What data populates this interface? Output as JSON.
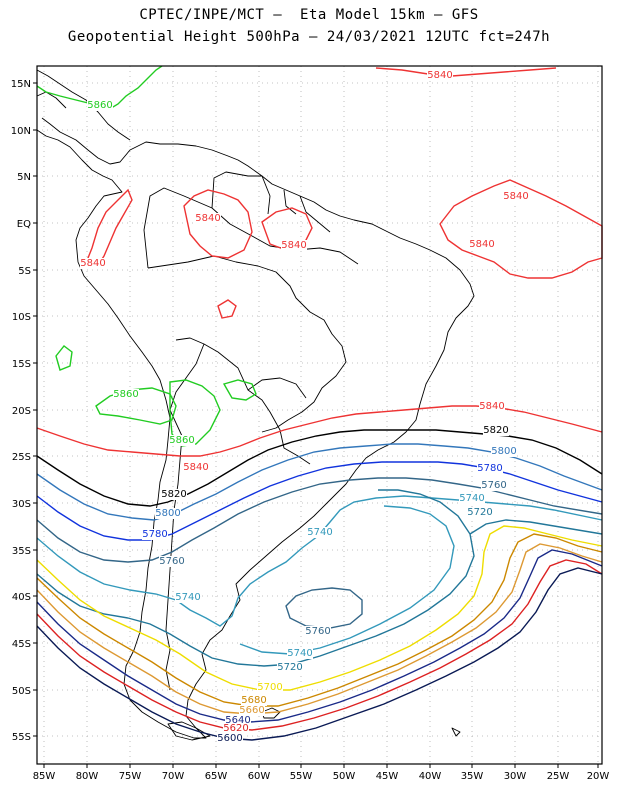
{
  "title": {
    "line1": "CPTEC/INPE/MCT –  Eta Model 15km – GFS",
    "line2": "Geopotential Height 500hPa – 24/03/2021 12UTC fct=247h"
  },
  "axes": {
    "y_ticks": [
      "15N",
      "10N",
      "5N",
      "EQ",
      "5S",
      "10S",
      "15S",
      "20S",
      "25S",
      "30S",
      "35S",
      "40S",
      "45S",
      "50S",
      "55S"
    ],
    "x_ticks": [
      "85W",
      "80W",
      "75W",
      "70W",
      "65W",
      "60W",
      "55W",
      "50W",
      "45W",
      "40W",
      "35W",
      "30W",
      "25W",
      "20W"
    ],
    "grid": true
  },
  "colors": {
    "5860": "#22cc22",
    "5840": "#ee3333",
    "5820": "#000000",
    "5800": "#3377bb",
    "5780": "#1133dd",
    "5760": "#336688",
    "5740": "#3399bb",
    "5720": "#227799",
    "5700": "#eedd00",
    "5680": "#cc8800",
    "5660": "#dd9933",
    "5640": "#1a2a88",
    "5620": "#dd2222",
    "5600": "#0a1a55"
  },
  "contour_labels": [
    {
      "text": "5860",
      "level": "5860",
      "id": "l1"
    },
    {
      "text": "5840",
      "level": "5840",
      "id": "l2"
    },
    {
      "text": "5840",
      "level": "5840",
      "id": "l3"
    },
    {
      "text": "5840",
      "level": "5840",
      "id": "l4"
    },
    {
      "text": "5840",
      "level": "5840",
      "id": "l5"
    },
    {
      "text": "5840",
      "level": "5840",
      "id": "l6"
    },
    {
      "text": "5840",
      "level": "5840",
      "id": "l7"
    },
    {
      "text": "5860",
      "level": "5860",
      "id": "l8"
    },
    {
      "text": "5860",
      "level": "5860",
      "id": "l9"
    },
    {
      "text": "5840",
      "level": "5840",
      "id": "l10"
    },
    {
      "text": "5840",
      "level": "5840",
      "id": "l11"
    },
    {
      "text": "5820",
      "level": "5820",
      "id": "l12"
    },
    {
      "text": "5820",
      "level": "5820",
      "id": "l13"
    },
    {
      "text": "5800",
      "level": "5800",
      "id": "l14"
    },
    {
      "text": "5800",
      "level": "5800",
      "id": "l15"
    },
    {
      "text": "5780",
      "level": "5780",
      "id": "l16"
    },
    {
      "text": "5780",
      "level": "5780",
      "id": "l17"
    },
    {
      "text": "5760",
      "level": "5760",
      "id": "l18"
    },
    {
      "text": "5760",
      "level": "5760",
      "id": "l19"
    },
    {
      "text": "5740",
      "level": "5740",
      "id": "l20"
    },
    {
      "text": "5740",
      "level": "5740",
      "id": "l21"
    },
    {
      "text": "5720",
      "level": "5720",
      "id": "l22"
    },
    {
      "text": "5740",
      "level": "5740",
      "id": "l23"
    },
    {
      "text": "5760",
      "level": "5760",
      "id": "l24"
    },
    {
      "text": "5740",
      "level": "5740",
      "id": "l25"
    },
    {
      "text": "5720",
      "level": "5720",
      "id": "l26"
    },
    {
      "text": "5700",
      "level": "5700",
      "id": "l27"
    },
    {
      "text": "5680",
      "level": "5680",
      "id": "l28"
    },
    {
      "text": "5660",
      "level": "5660",
      "id": "l29"
    },
    {
      "text": "5640",
      "level": "5640",
      "id": "l30"
    },
    {
      "text": "5620",
      "level": "5620",
      "id": "l31"
    },
    {
      "text": "5600",
      "level": "5600",
      "id": "l32"
    }
  ]
}
